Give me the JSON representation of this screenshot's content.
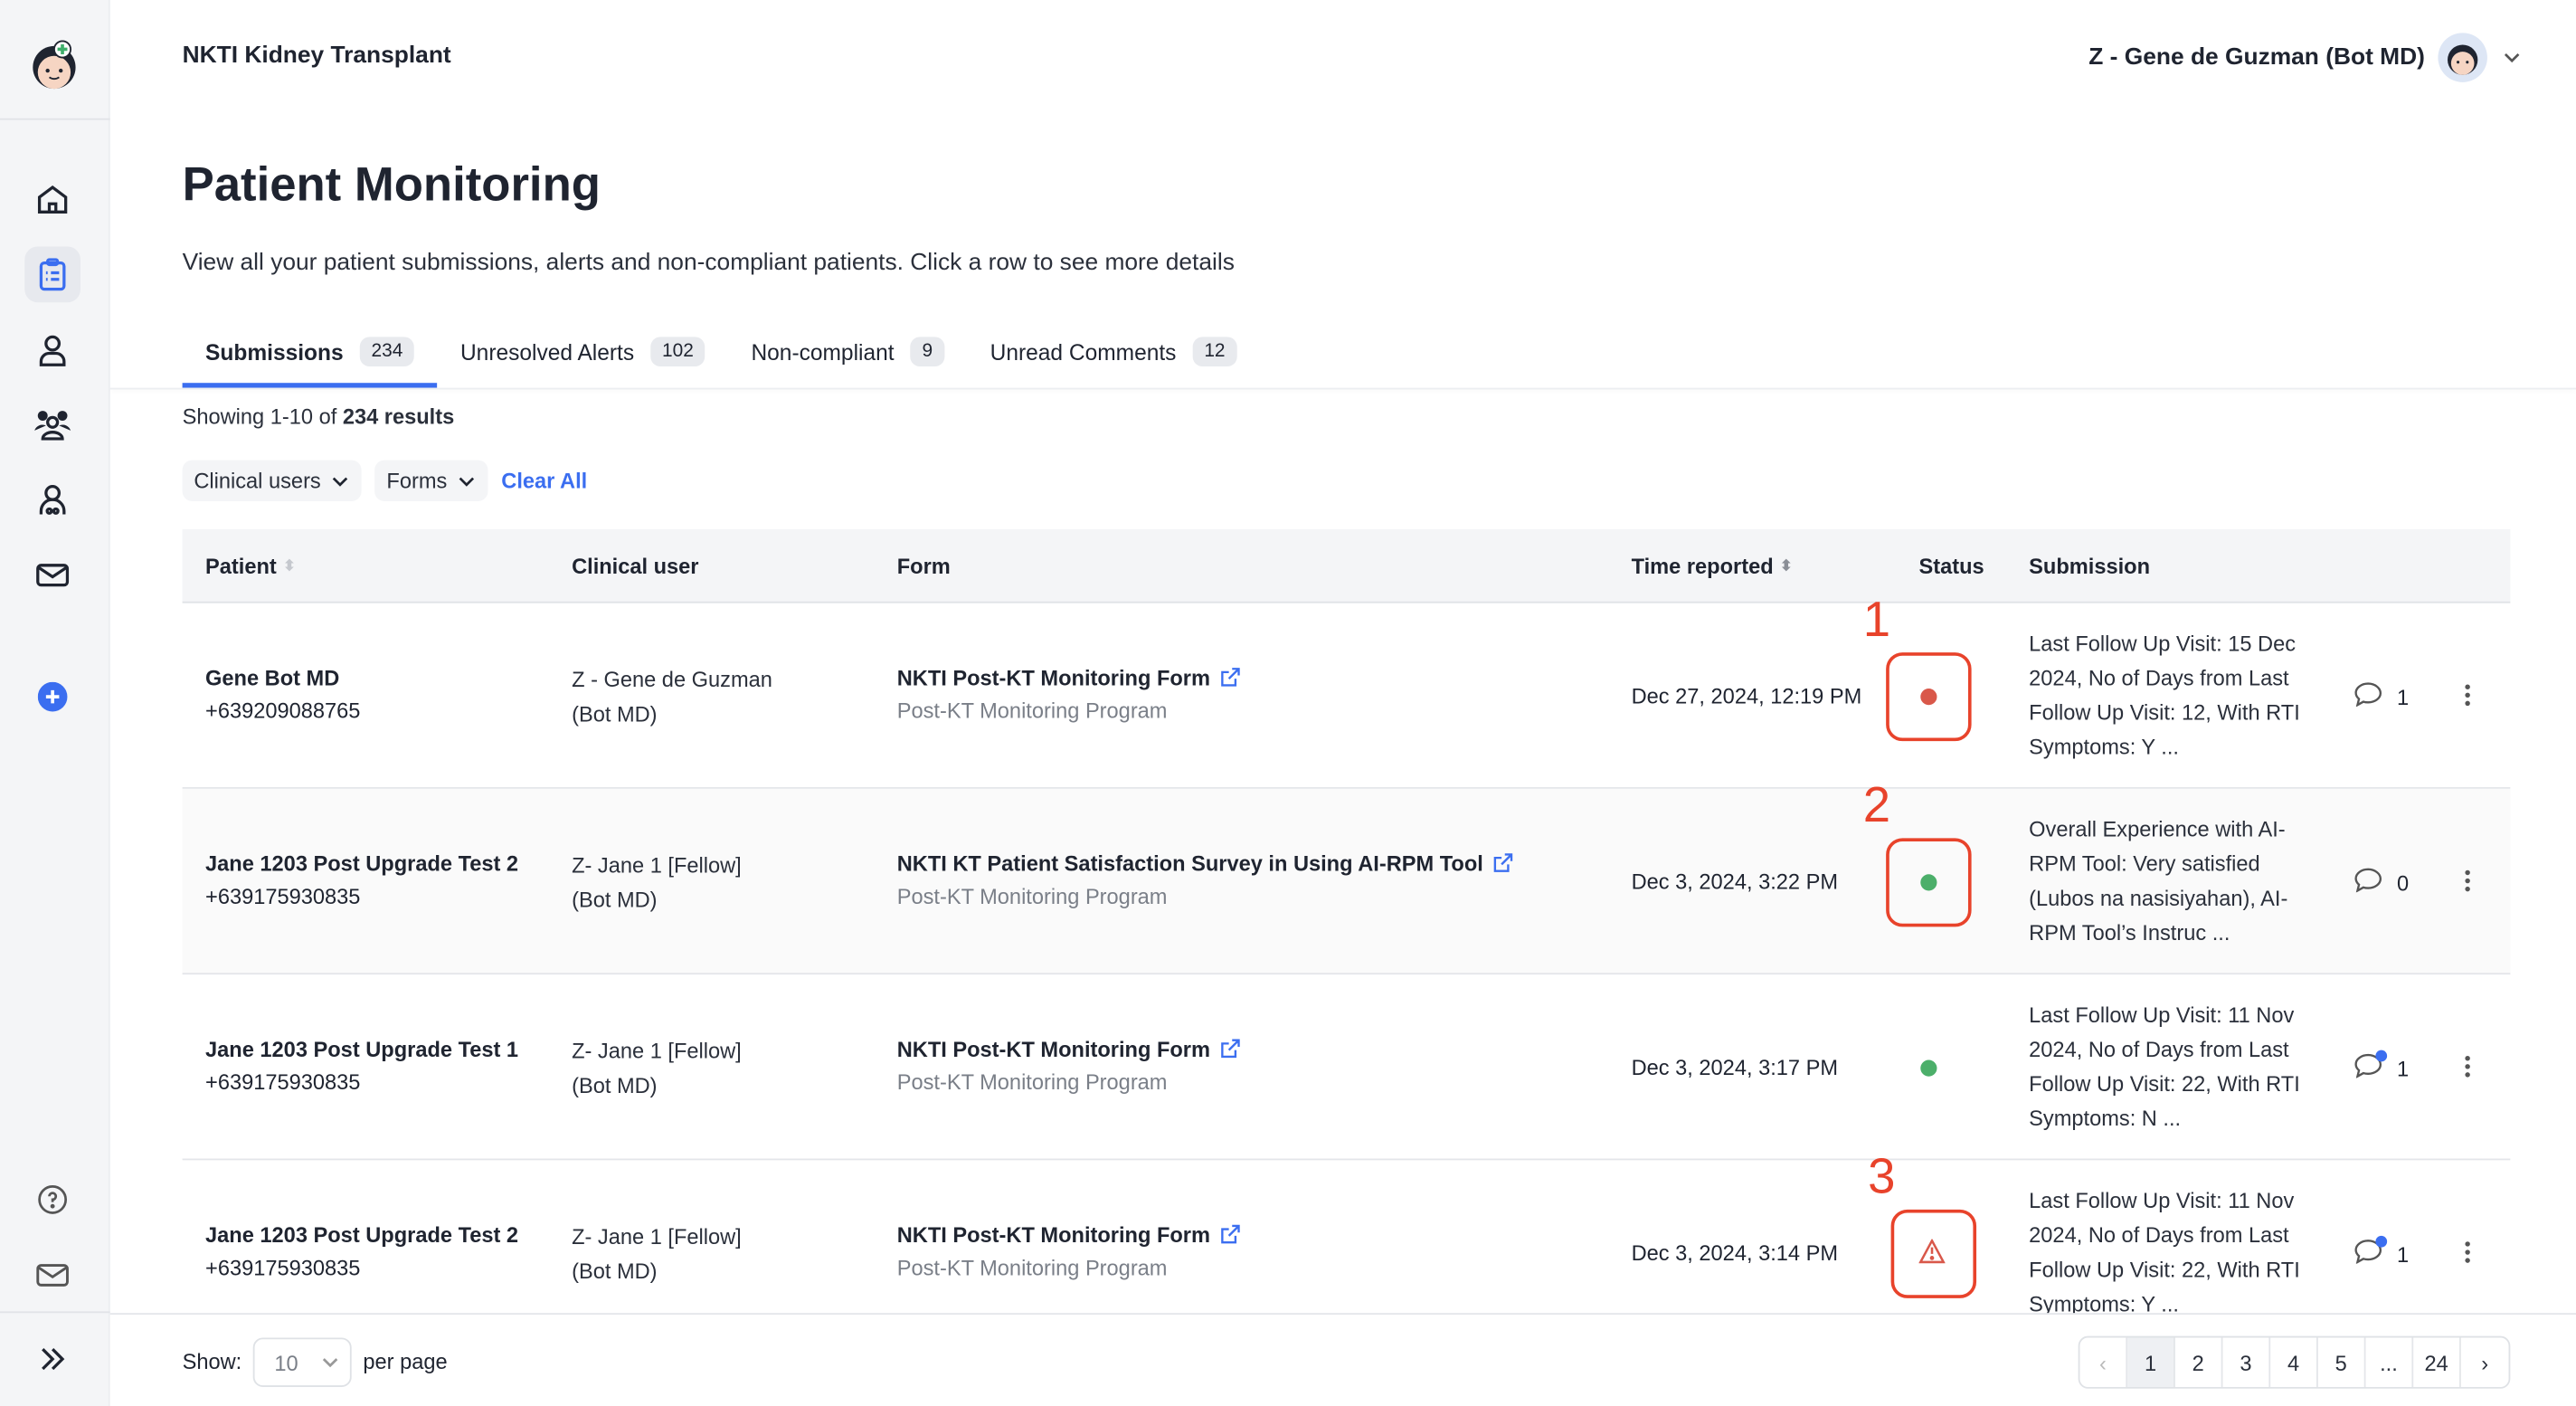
{
  "app": {
    "title": "NKTI Kidney Transplant",
    "user": "Z - Gene de Guzman (Bot MD)"
  },
  "sidebar": {
    "items": [
      {
        "icon": "home-icon"
      },
      {
        "icon": "clipboard-icon",
        "active": true
      },
      {
        "icon": "user-icon"
      },
      {
        "icon": "users-group-icon"
      },
      {
        "icon": "doctor-icon"
      },
      {
        "icon": "mail-icon"
      },
      {
        "icon": "plus-circle-icon"
      }
    ],
    "bottom": [
      {
        "icon": "help-icon"
      },
      {
        "icon": "mail-icon"
      },
      {
        "icon": "expand-icon"
      }
    ]
  },
  "page": {
    "title": "Patient Monitoring",
    "subtitle": "View all your patient submissions, alerts and non-compliant patients. Click a row to see more details"
  },
  "tabs": [
    {
      "label": "Submissions",
      "count": "234",
      "active": true
    },
    {
      "label": "Unresolved Alerts",
      "count": "102"
    },
    {
      "label": "Non-compliant",
      "count": "9"
    },
    {
      "label": "Unread Comments",
      "count": "12"
    }
  ],
  "results": {
    "prefix": "Showing 1-10 of ",
    "bold": "234 results"
  },
  "filters": {
    "clinical_users": "Clinical users",
    "forms": "Forms",
    "clear_all": "Clear All"
  },
  "table": {
    "headers": {
      "patient": "Patient",
      "clinical_user": "Clinical user",
      "form": "Form",
      "time": "Time reported",
      "status": "Status",
      "submission": "Submission"
    },
    "rows": [
      {
        "name": "Gene Bot MD",
        "phone": "+639209088765",
        "clinical_user": "Z - Gene de Guzman (Bot MD)",
        "form": "NKTI Post-KT Monitoring Form",
        "program": "Post-KT Monitoring Program",
        "time": "Dec 27, 2024, 12:19 PM",
        "status": "red",
        "submission": "Last Follow Up Visit: 15 Dec 2024, No of Days from Last Follow Up Visit: 12, With RTI Symptoms: Y ...",
        "comments": "1",
        "unread": false,
        "annotation": "1"
      },
      {
        "name": "Jane 1203 Post Upgrade Test 2",
        "phone": "+639175930835",
        "clinical_user": "Z- Jane 1 [Fellow] (Bot MD)",
        "form": "NKTI KT Patient Satisfaction Survey in Using AI-RPM Tool",
        "program": "Post-KT Monitoring Program",
        "time": "Dec 3, 2024, 3:22 PM",
        "status": "green",
        "submission": "Overall Experience with AI-RPM Tool: Very satisfied (Lubos na nasisiyahan), AI-RPM Tool’s Instruc ...",
        "comments": "0",
        "unread": false,
        "annotation": "2"
      },
      {
        "name": "Jane 1203 Post Upgrade Test 1",
        "phone": "+639175930835",
        "clinical_user": "Z- Jane 1 [Fellow] (Bot MD)",
        "form": "NKTI Post-KT Monitoring Form",
        "program": "Post-KT Monitoring Program",
        "time": "Dec 3, 2024, 3:17 PM",
        "status": "green",
        "submission": "Last Follow Up Visit: 11 Nov 2024, No of Days from Last Follow Up Visit: 22, With RTI Symptoms: N ...",
        "comments": "1",
        "unread": true,
        "annotation": ""
      },
      {
        "name": "Jane 1203 Post Upgrade Test 2",
        "phone": "+639175930835",
        "clinical_user": "Z- Jane 1 [Fellow] (Bot MD)",
        "form": "NKTI Post-KT Monitoring Form",
        "program": "Post-KT Monitoring Program",
        "time": "Dec 3, 2024, 3:14 PM",
        "status": "warning",
        "submission": "Last Follow Up Visit: 11 Nov 2024, No of Days from Last Follow Up Visit: 22, With RTI Symptoms: Y ...",
        "comments": "1",
        "unread": true,
        "annotation": "3"
      }
    ]
  },
  "footer": {
    "show": "Show:",
    "per_page_value": "10",
    "per_page": "per page",
    "pages": [
      "1",
      "2",
      "3",
      "4",
      "5",
      "...",
      "24"
    ],
    "current": "1"
  },
  "colors": {
    "accent": "#3b6ef0",
    "red": "#d9584a",
    "green": "#4caf6a",
    "annotation": "#e8432b"
  }
}
